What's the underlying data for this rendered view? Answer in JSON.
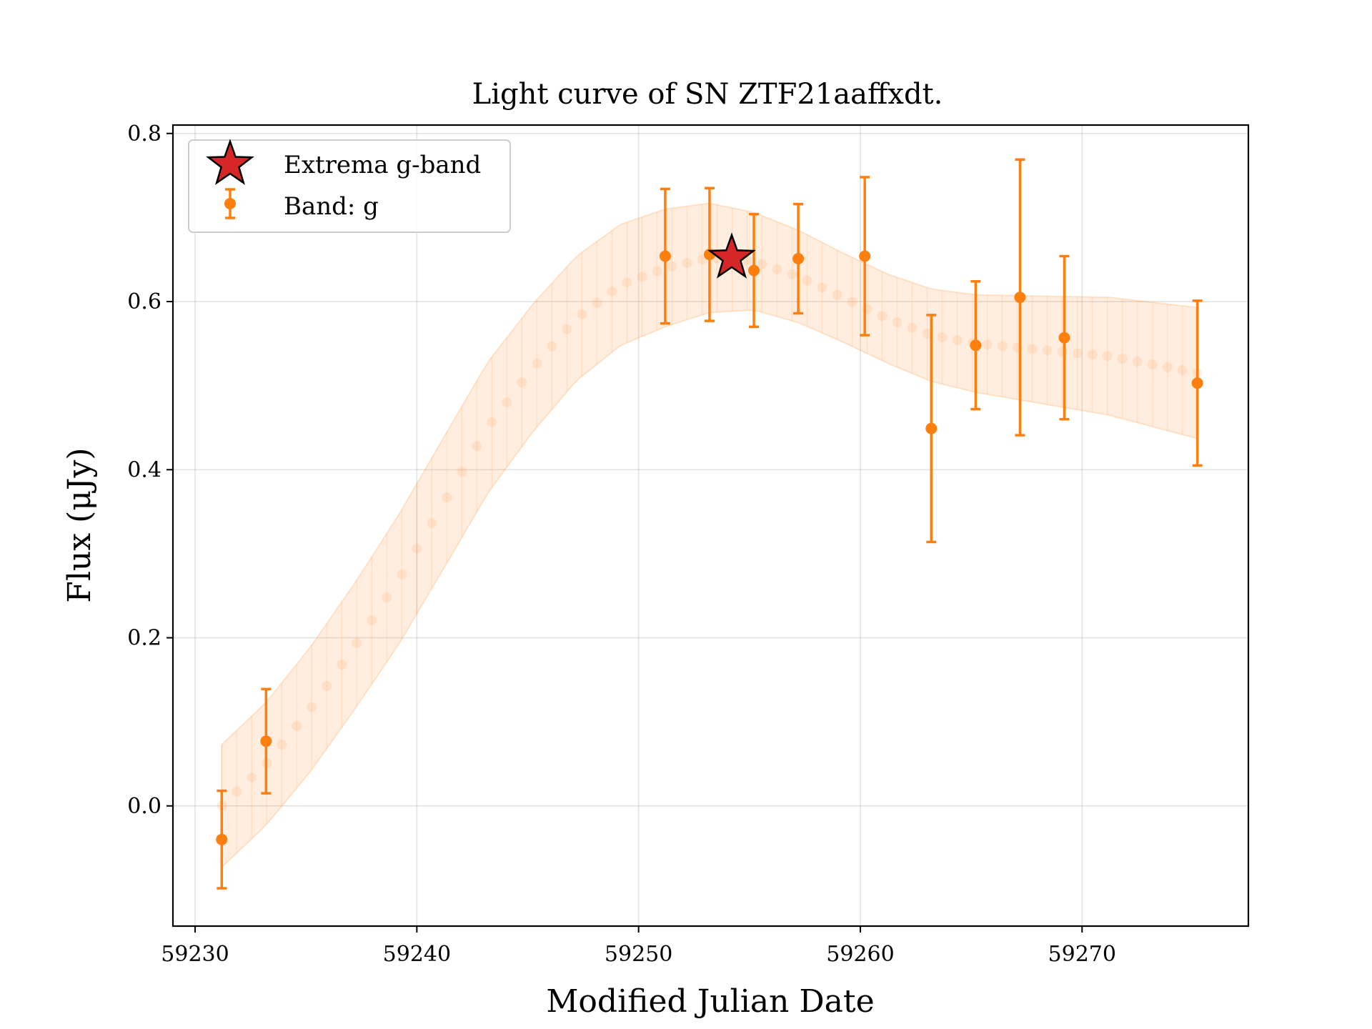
{
  "chart_data": {
    "type": "scatter",
    "title": "Light curve of SN ZTF21aaffxdt.",
    "xlabel": "Modified Julian Date",
    "ylabel": "Flux (μJy)",
    "xlim": [
      59229,
      59277.5
    ],
    "ylim": [
      -0.143,
      0.81
    ],
    "xticks": [
      59230,
      59240,
      59250,
      59260,
      59270
    ],
    "yticks": [
      0.0,
      0.2,
      0.4,
      0.6,
      0.8
    ],
    "ytick_labels": [
      "0.0",
      "0.2",
      "0.4",
      "0.6",
      "0.8"
    ],
    "grid": true,
    "legend_position": "top-left",
    "series": [
      {
        "name": "Band: g",
        "color": "#ff7f0e",
        "x": [
          59231.2,
          59233.2,
          59251.2,
          59253.2,
          59255.2,
          59257.2,
          59260.2,
          59263.2,
          59265.2,
          59267.2,
          59269.2,
          59275.2
        ],
        "y": [
          -0.04,
          0.077,
          0.654,
          0.656,
          0.637,
          0.651,
          0.654,
          0.449,
          0.548,
          0.605,
          0.557,
          0.503
        ],
        "yerr": [
          0.058,
          0.062,
          0.08,
          0.079,
          0.067,
          0.065,
          0.094,
          0.135,
          0.076,
          0.164,
          0.097,
          0.098
        ]
      }
    ],
    "model": {
      "color": "#ff7f0e",
      "x": [
        59231.2,
        59233.2,
        59235.2,
        59237.2,
        59239.2,
        59241.2,
        59243.2,
        59245.2,
        59247.2,
        59249.2,
        59251.2,
        59253.2,
        59255.2,
        59257.2,
        59259.2,
        59261.2,
        59263.2,
        59265.2,
        59267.2,
        59269.2,
        59271.2,
        59273.2,
        59275.2
      ],
      "y": [
        0.0,
        0.05,
        0.115,
        0.19,
        0.27,
        0.36,
        0.45,
        0.52,
        0.58,
        0.62,
        0.64,
        0.652,
        0.648,
        0.63,
        0.605,
        0.58,
        0.56,
        0.55,
        0.545,
        0.54,
        0.535,
        0.525,
        0.515
      ],
      "yerr": [
        0.073,
        0.073,
        0.074,
        0.075,
        0.077,
        0.078,
        0.078,
        0.076,
        0.074,
        0.072,
        0.07,
        0.065,
        0.058,
        0.055,
        0.053,
        0.053,
        0.055,
        0.058,
        0.062,
        0.066,
        0.07,
        0.074,
        0.078
      ]
    },
    "extrema": {
      "name": "Extrema g-band",
      "color": "#d62728",
      "x": 59254.2,
      "y": 0.652
    }
  }
}
